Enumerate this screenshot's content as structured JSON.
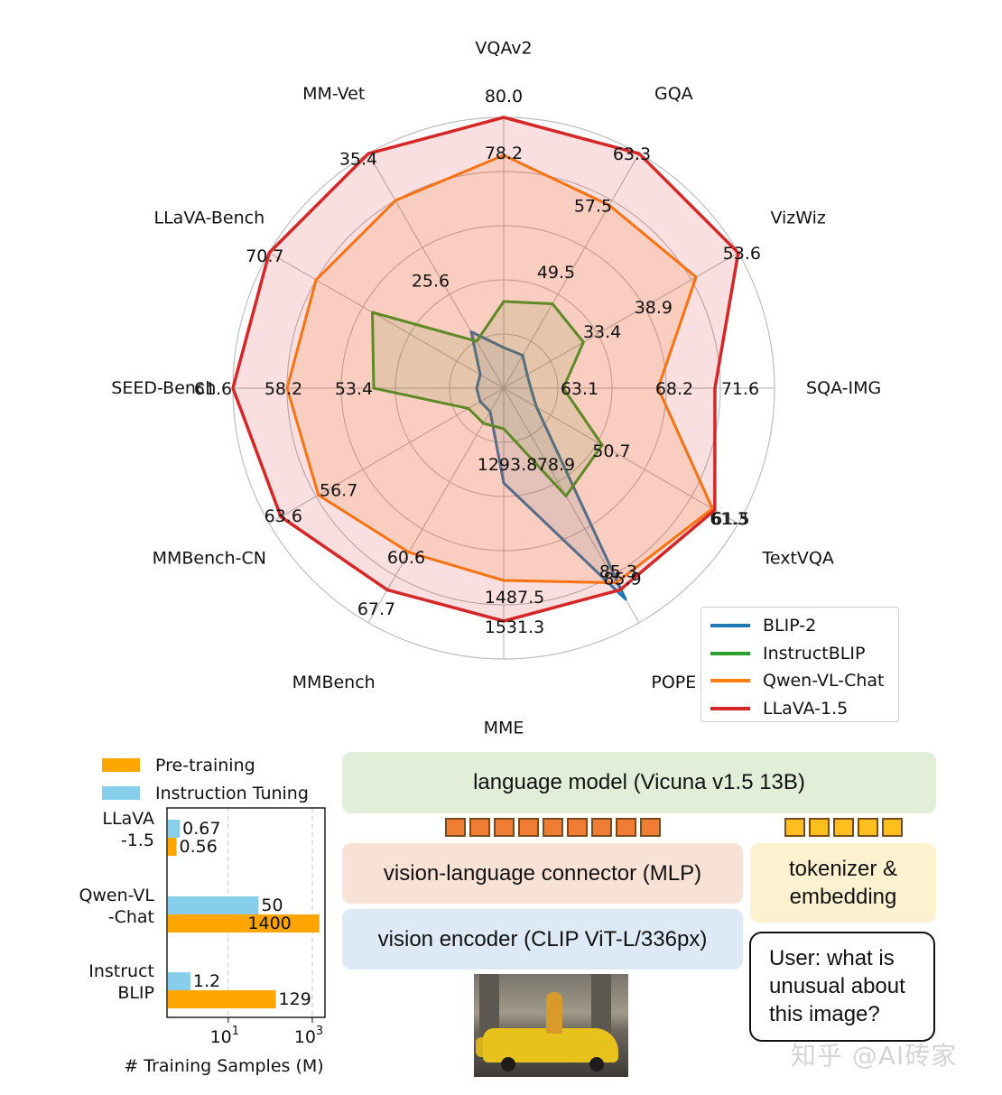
{
  "chart_data": [
    {
      "type": "radar",
      "categories": [
        "VQAv2",
        "GQA",
        "VizWiz",
        "SQA-IMG",
        "TextVQA",
        "POPE",
        "MME",
        "MMBench",
        "MMBench-CN",
        "SEED-Bench",
        "LLaVA-Bench",
        "MM-Vet"
      ],
      "series": [
        {
          "name": "BLIP-2",
          "color": "#1f77b4",
          "fraction": [
            0.15,
            0.14,
            0.1,
            0.1,
            0.14,
            0.9,
            0.35,
            0.1,
            0.1,
            0.1,
            0.1,
            0.24
          ]
        },
        {
          "name": "InstructBLIP",
          "color": "#2ca02c",
          "fraction": [
            0.32,
            0.36,
            0.34,
            0.22,
            0.42,
            0.46,
            0.15,
            0.15,
            0.15,
            0.48,
            0.56,
            0.2
          ]
        },
        {
          "name": "Qwen-VL-Chat",
          "color": "#ff7f0e",
          "fraction": [
            0.86,
            0.78,
            0.82,
            0.57,
            0.89,
            0.83,
            0.71,
            0.7,
            0.79,
            0.8,
            0.8,
            0.8
          ]
        },
        {
          "name": "LLaVA-1.5",
          "color": "#d62728",
          "fraction": [
            1.0,
            1.0,
            1.0,
            0.78,
            0.9,
            0.86,
            0.86,
            0.86,
            0.95,
            1.0,
            1.0,
            1.0
          ]
        }
      ],
      "value_labels": [
        {
          "text": "80.0",
          "axis": 0,
          "r": 1.08,
          "dx": 0
        },
        {
          "text": "78.2",
          "axis": 0,
          "r": 0.87,
          "dx": 0
        },
        {
          "text": "49.5",
          "axis": 0,
          "r": 0.43,
          "dx": 58
        },
        {
          "text": "63.3",
          "axis": 1,
          "r": 1.0,
          "dx": -8
        },
        {
          "text": "57.5",
          "axis": 1,
          "r": 0.78,
          "dx": -18
        },
        {
          "text": "53.6",
          "axis": 2,
          "r": 1.0,
          "dx": 4
        },
        {
          "text": "38.9",
          "axis": 2,
          "r": 0.6,
          "dx": 10
        },
        {
          "text": "33.4",
          "axis": 2,
          "r": 0.42,
          "dx": 0
        },
        {
          "text": "71.6",
          "axis": 3,
          "r": 0.84,
          "dx": 10
        },
        {
          "text": "68.2",
          "axis": 3,
          "r": 0.63,
          "dx": 0
        },
        {
          "text": "63.1",
          "axis": 3,
          "r": 0.28,
          "dx": 0
        },
        {
          "text": "61.3",
          "axis": 4,
          "r": 0.96,
          "dx": 0
        },
        {
          "text": "61.5",
          "axis": 4,
          "r": 0.96,
          "dx": 2
        },
        {
          "text": "50.7",
          "axis": 4,
          "r": 0.46,
          "dx": 0
        },
        {
          "text": "85.3",
          "axis": 5,
          "r": 0.78,
          "dx": 10
        },
        {
          "text": "85.9",
          "axis": 5,
          "r": 0.81,
          "dx": 10
        },
        {
          "text": "1487.5",
          "axis": 6,
          "r": 0.77,
          "dx": 12
        },
        {
          "text": "1531.3",
          "axis": 6,
          "r": 0.88,
          "dx": 12
        },
        {
          "text": "1293.8",
          "axis": 6,
          "r": 0.28,
          "dx": 4
        },
        {
          "text": "78.9",
          "axis": 6,
          "r": 0.28,
          "dx": 58
        },
        {
          "text": "60.6",
          "axis": 7,
          "r": 0.72,
          "dx": 0
        },
        {
          "text": "67.7",
          "axis": 7,
          "r": 0.94,
          "dx": 0
        },
        {
          "text": "56.7",
          "axis": 8,
          "r": 0.75,
          "dx": 12
        },
        {
          "text": "63.6",
          "axis": 8,
          "r": 0.94,
          "dx": 0
        },
        {
          "text": "61.6",
          "axis": 9,
          "r": 1.04,
          "dx": -10
        },
        {
          "text": "58.2",
          "axis": 9,
          "r": 0.82,
          "dx": 2
        },
        {
          "text": "53.4",
          "axis": 9,
          "r": 0.54,
          "dx": -4
        },
        {
          "text": "70.7",
          "axis": 10,
          "r": 0.98,
          "dx": -10
        },
        {
          "text": "25.6",
          "axis": 11,
          "r": 0.46,
          "dx": -12
        },
        {
          "text": "35.4",
          "axis": 11,
          "r": 0.98,
          "dx": -14
        }
      ],
      "legend_position": "bottom-right",
      "grid": true
    },
    {
      "type": "bar",
      "orientation": "horizontal",
      "xscale": "log",
      "categories": [
        "LLaVA\n-1.5",
        "Qwen-VL\n-Chat",
        "Instruct\nBLIP"
      ],
      "series": [
        {
          "name": "Instruction Tuning",
          "color": "#87ceeb",
          "values": [
            0.67,
            50,
            1.2
          ],
          "labels": [
            "0.67",
            "50",
            "1.2"
          ]
        },
        {
          "name": "Pre-training",
          "color": "#ffa500",
          "values": [
            0.56,
            1400,
            129
          ],
          "labels": [
            "0.56",
            "1400",
            "129"
          ]
        }
      ],
      "xlabel": "# Training Samples (M)",
      "xticks": [
        "10",
        "10"
      ],
      "xtick_exponents": [
        "1",
        "3"
      ],
      "xlim": [
        0.35,
        2000
      ],
      "legend_position": "top"
    }
  ],
  "diagram": {
    "language_model": "language model (Vicuna v1.5 13B)",
    "connector": "vision-language connector (MLP)",
    "vision_encoder": "vision encoder (CLIP ViT-L/336px)",
    "tokenizer": "tokenizer &\nembedding",
    "user_prompt": "User: what is\nunusual about\nthis image?"
  },
  "watermark": "知乎 @AI砖家"
}
